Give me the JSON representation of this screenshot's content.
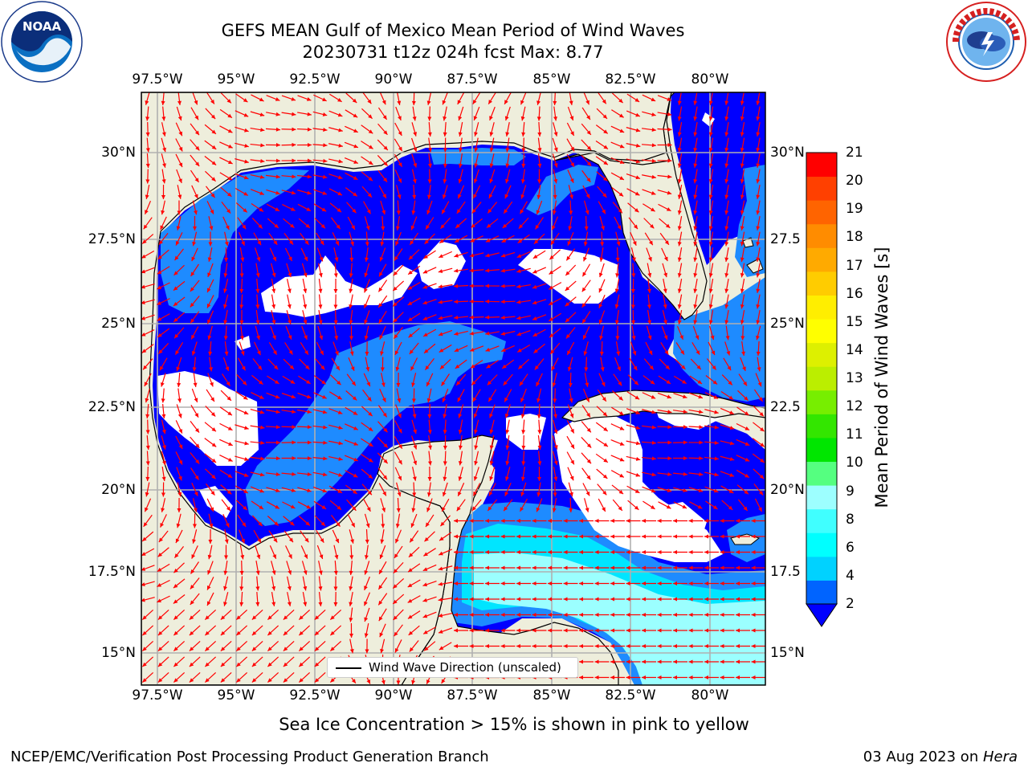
{
  "title": {
    "line1": "GEFS MEAN Gulf of Mexico Mean Period of Wind Waves",
    "line2": "20230731 t12z 024h fcst   Max: 8.77"
  },
  "logos": {
    "left": {
      "name": "noaa-logo",
      "text": "NOAA",
      "ring_text": "NATIONAL OCEANIC AND ATMOSPHERIC ADMINISTRATION · U.S. DEPARTMENT OF COMMERCE"
    },
    "right": {
      "name": "nws-logo",
      "ring_text": "NATIONAL WEATHER SERVICE"
    }
  },
  "map": {
    "lon_ticks": [
      "97.5°W",
      "95°W",
      "92.5°W",
      "90°W",
      "87.5°W",
      "85°W",
      "82.5°W",
      "80°W"
    ],
    "lat_ticks_left": [
      "30°N",
      "27.5°N",
      "25°N",
      "22.5°N",
      "20°N",
      "17.5°N",
      "15°N"
    ],
    "lat_ticks_right": [
      "30°N",
      "27.5",
      "25°N",
      "22.5",
      "20°N",
      "17.5",
      "15°N"
    ],
    "lon_range": [
      -98,
      -78.25
    ],
    "lat_range": [
      14,
      31.75
    ],
    "colors": {
      "land": "#eeeedc",
      "period_2_4": "#0000ff",
      "period_4_6": "#1e8bff",
      "period_6_8": "#00e5ff",
      "period_8_9": "#9bffff",
      "calm": "#ffffff",
      "arrow": "#ff0000",
      "grid": "#b0b0b0"
    },
    "dominant_wave_direction": "from east/southeast in the Caribbean, variable in the Gulf"
  },
  "legend": {
    "label": "Wind Wave Direction (unscaled)"
  },
  "colorbar": {
    "label": "Mean Period of Wind Waves [s]",
    "ticks": [
      "21",
      "20",
      "19",
      "18",
      "17",
      "16",
      "15",
      "14",
      "13",
      "12",
      "11",
      "10",
      "9",
      "8",
      "6",
      "4",
      "2"
    ],
    "colors": [
      "#0064ff",
      "#00d2ff",
      "#00ffff",
      "#40ffff",
      "#9dffff",
      "#55ff80",
      "#00e600",
      "#33e600",
      "#77ee00",
      "#bbee00",
      "#ddf000",
      "#ffff00",
      "#ffee00",
      "#ffcc00",
      "#ffaa00",
      "#ff8c00",
      "#ff6400",
      "#ff4000",
      "#ff0000"
    ]
  },
  "subtitle": "Sea Ice Concentration > 15% is shown in pink to yellow",
  "footer": {
    "left": "NCEP/EMC/Verification Post Processing Product Generation Branch",
    "right_date": "03 Aug 2023 on ",
    "right_host": "Hera"
  }
}
